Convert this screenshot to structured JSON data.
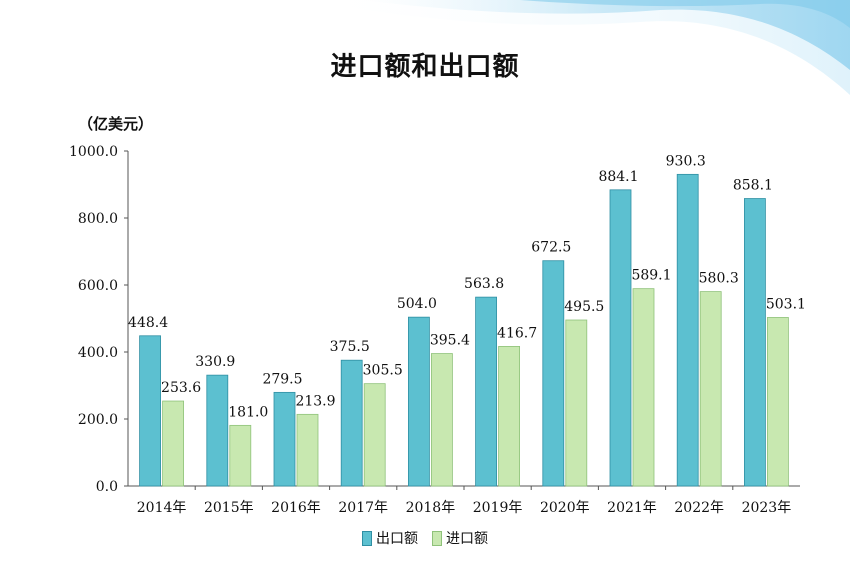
{
  "title": "进口额和出口额",
  "unit": "（亿美元）",
  "colors": {
    "export_fill": "#5cc0d0",
    "export_stroke": "#2f8fa3",
    "import_fill": "#c8e8b0",
    "import_stroke": "#8fc27a"
  },
  "chart_data": {
    "type": "bar",
    "categories": [
      "2014年",
      "2015年",
      "2016年",
      "2017年",
      "2018年",
      "2019年",
      "2020年",
      "2021年",
      "2022年",
      "2023年"
    ],
    "series": [
      {
        "name": "出口额",
        "values": [
          448.4,
          330.9,
          279.5,
          375.5,
          504.0,
          563.8,
          672.5,
          884.1,
          930.3,
          858.1
        ]
      },
      {
        "name": "进口额",
        "values": [
          253.6,
          181.0,
          213.9,
          305.5,
          395.4,
          416.7,
          495.5,
          589.1,
          580.3,
          503.1
        ]
      }
    ],
    "ylim": [
      0,
      1000
    ],
    "yticks": [
      "0.0",
      "200.0",
      "400.0",
      "600.0",
      "800.0",
      "1000.0"
    ],
    "ylabel": "（亿美元）",
    "legend": "bottom-center",
    "grid": false
  }
}
